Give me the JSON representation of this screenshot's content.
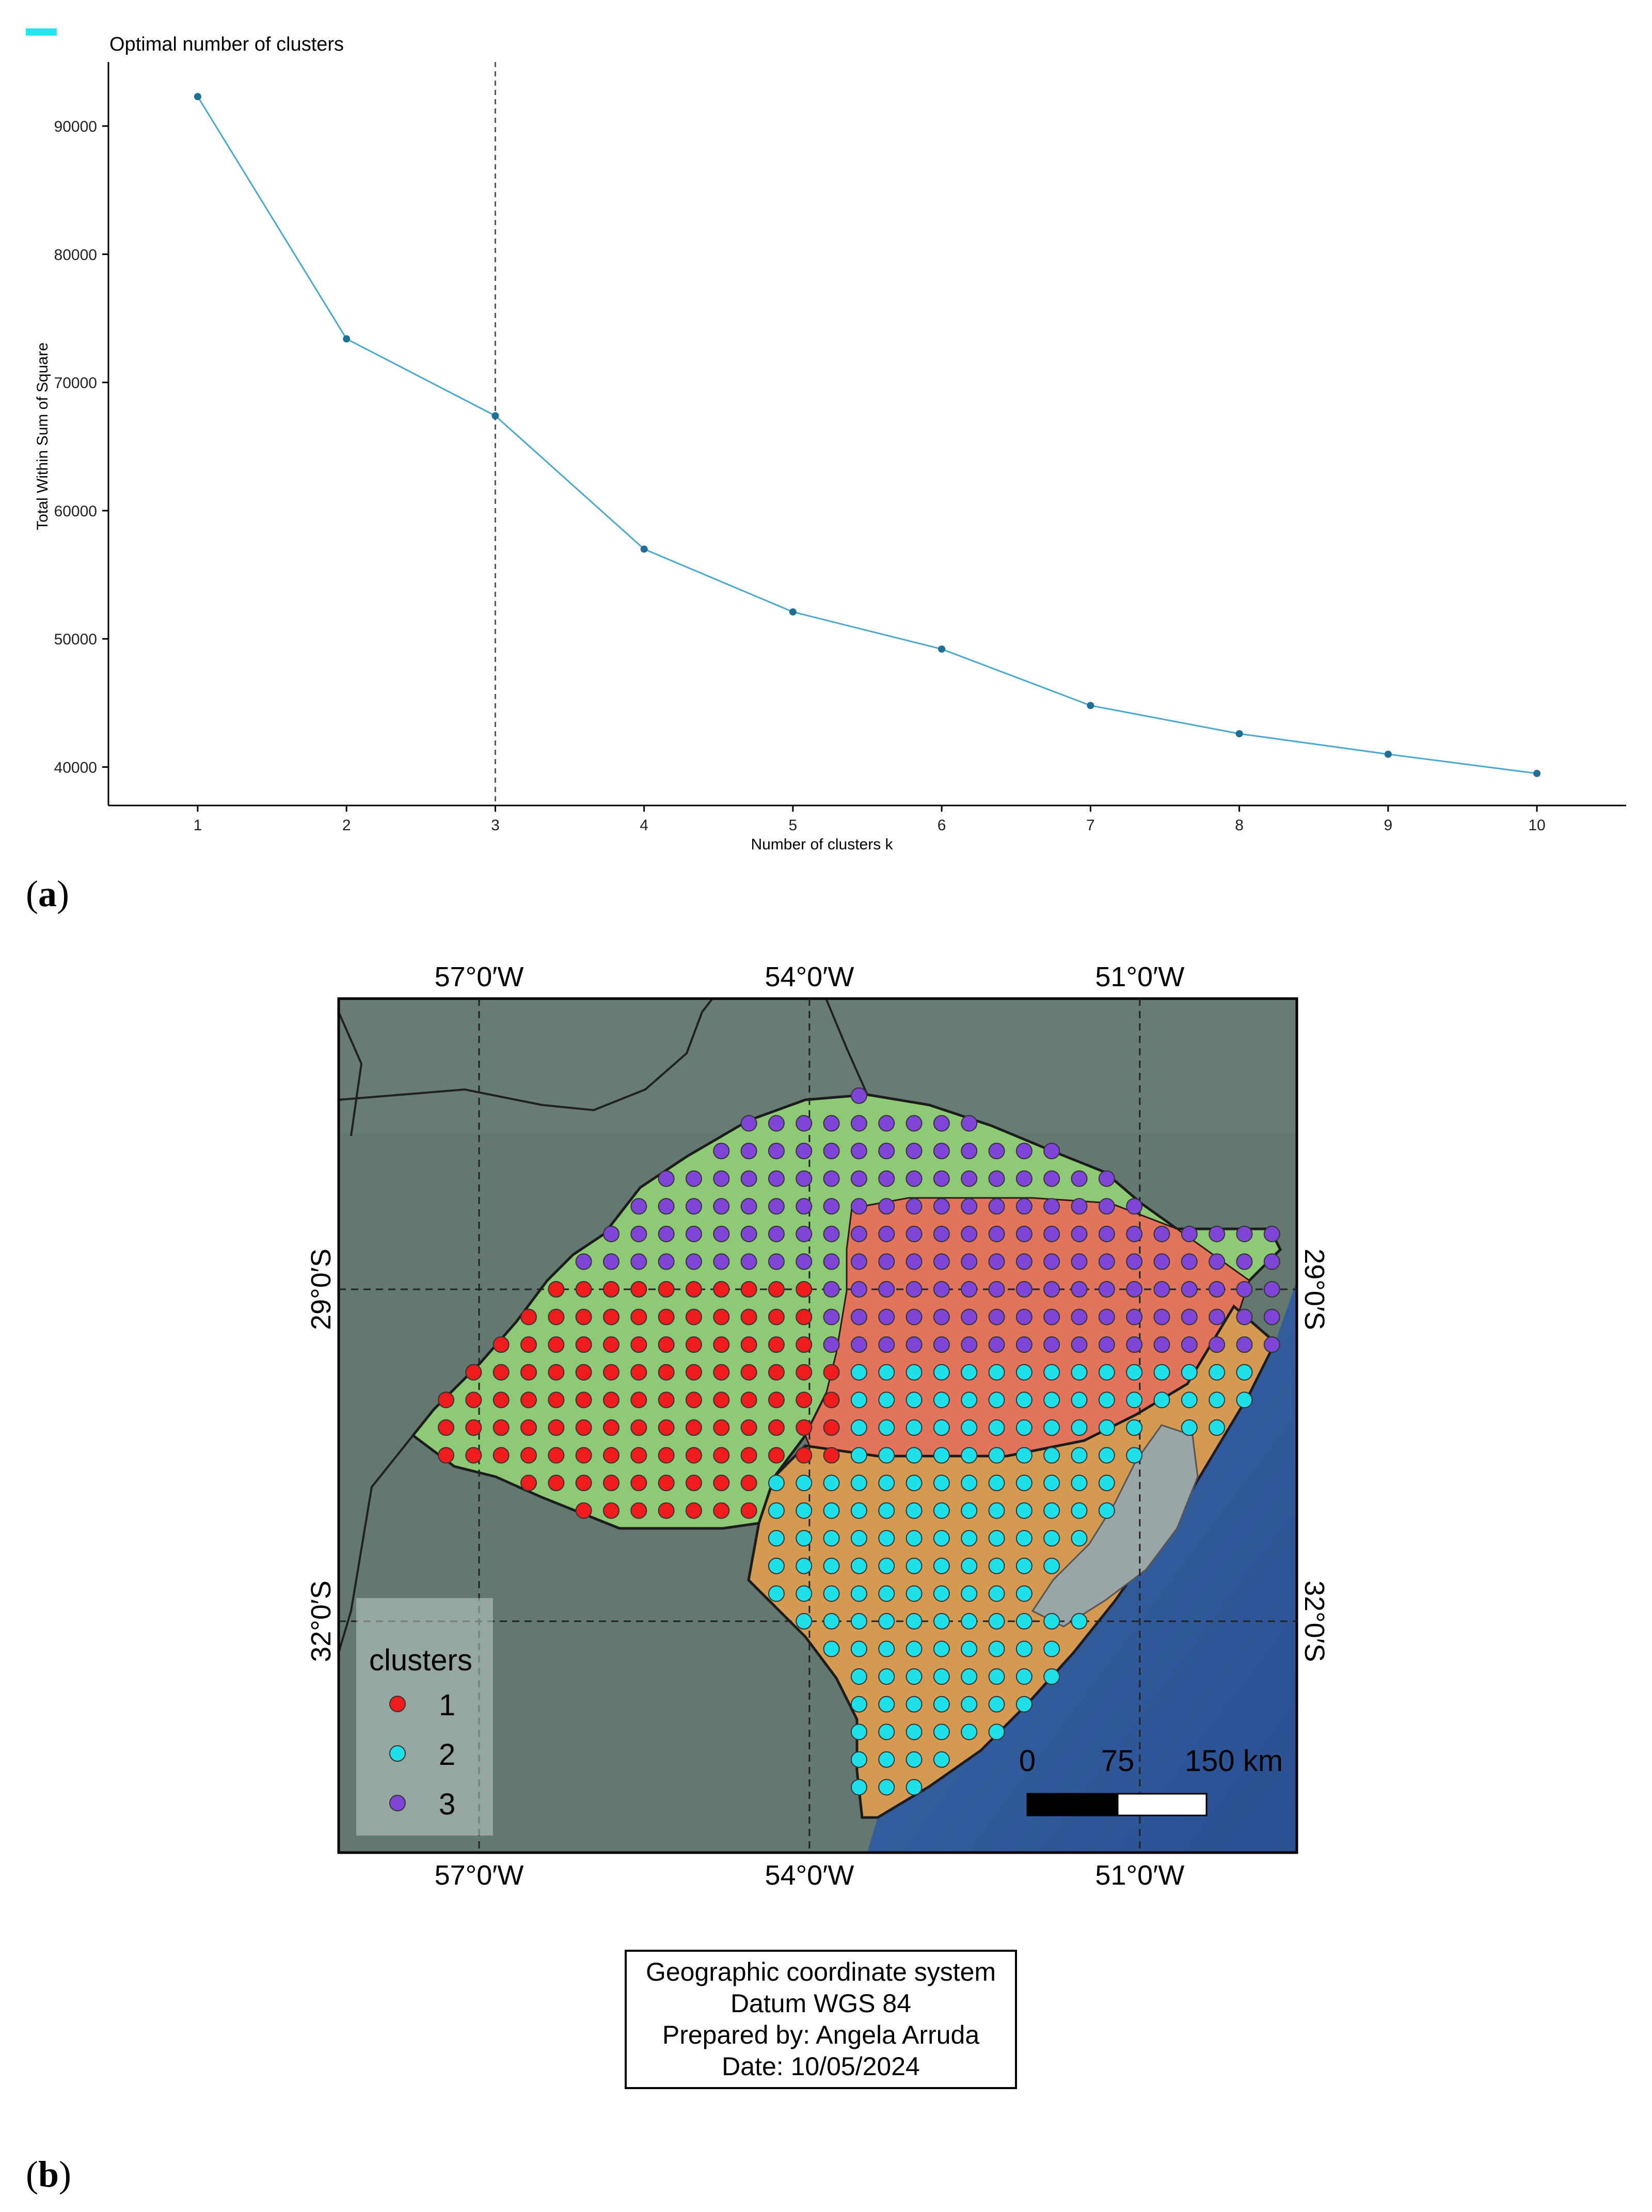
{
  "panel_labels": {
    "a": "a",
    "b": "b"
  },
  "info_box": {
    "line1": "Geographic coordinate system",
    "line2": "Datum WGS 84",
    "line3": "Prepared by: Angela Arruda",
    "line4": "Date: 10/05/2024"
  },
  "chart_data": [
    {
      "type": "line",
      "title": "Optimal number of clusters",
      "xlabel": "Number of clusters k",
      "ylabel": "Total Within Sum of Square",
      "x": [
        1,
        2,
        3,
        4,
        5,
        6,
        7,
        8,
        9,
        10
      ],
      "series": [
        {
          "values": [
            92300,
            73400,
            67400,
            57000,
            52100,
            49200,
            44800,
            42600,
            41000,
            39500
          ]
        }
      ],
      "xlim": [
        0.4,
        10.6
      ],
      "ylim": [
        37000,
        95000
      ],
      "y_ticks": [
        40000,
        50000,
        60000,
        70000,
        80000,
        90000
      ],
      "x_ticks": [
        1,
        2,
        3,
        4,
        5,
        6,
        7,
        8,
        9,
        10
      ],
      "reference_line": {
        "x": 3,
        "style": "dashed"
      },
      "line_color": "#4aa8cf",
      "grid": false
    },
    {
      "type": "scatter",
      "map": true,
      "legend_title": "clusters",
      "legend": [
        {
          "label": "1",
          "color": "#ee1c1c"
        },
        {
          "label": "2",
          "color": "#1fe0e8"
        },
        {
          "label": "3",
          "color": "#7f45d6"
        }
      ],
      "longitude_labels": [
        "57°0′W",
        "54°0′W",
        "51°0′W"
      ],
      "longitudes": [
        -57,
        -54,
        -51
      ],
      "latitude_labels": [
        "29°0′S",
        "32°0′S"
      ],
      "latitudes": [
        -29,
        -32
      ],
      "lon_range": [
        -58.3,
        -49.6
      ],
      "lat_range": [
        -33.8,
        -26.0
      ],
      "scale_bar": {
        "labels": [
          "0",
          "75",
          "150 km"
        ]
      },
      "grid_step_deg": 0.25,
      "region_colors": {
        "north": "#8ec975",
        "central": "#e3745c",
        "south": "#d59a52",
        "lagoon": "#9aa5a8",
        "ocean": "#2f5da0",
        "land_bg": "#62776e"
      }
    }
  ]
}
